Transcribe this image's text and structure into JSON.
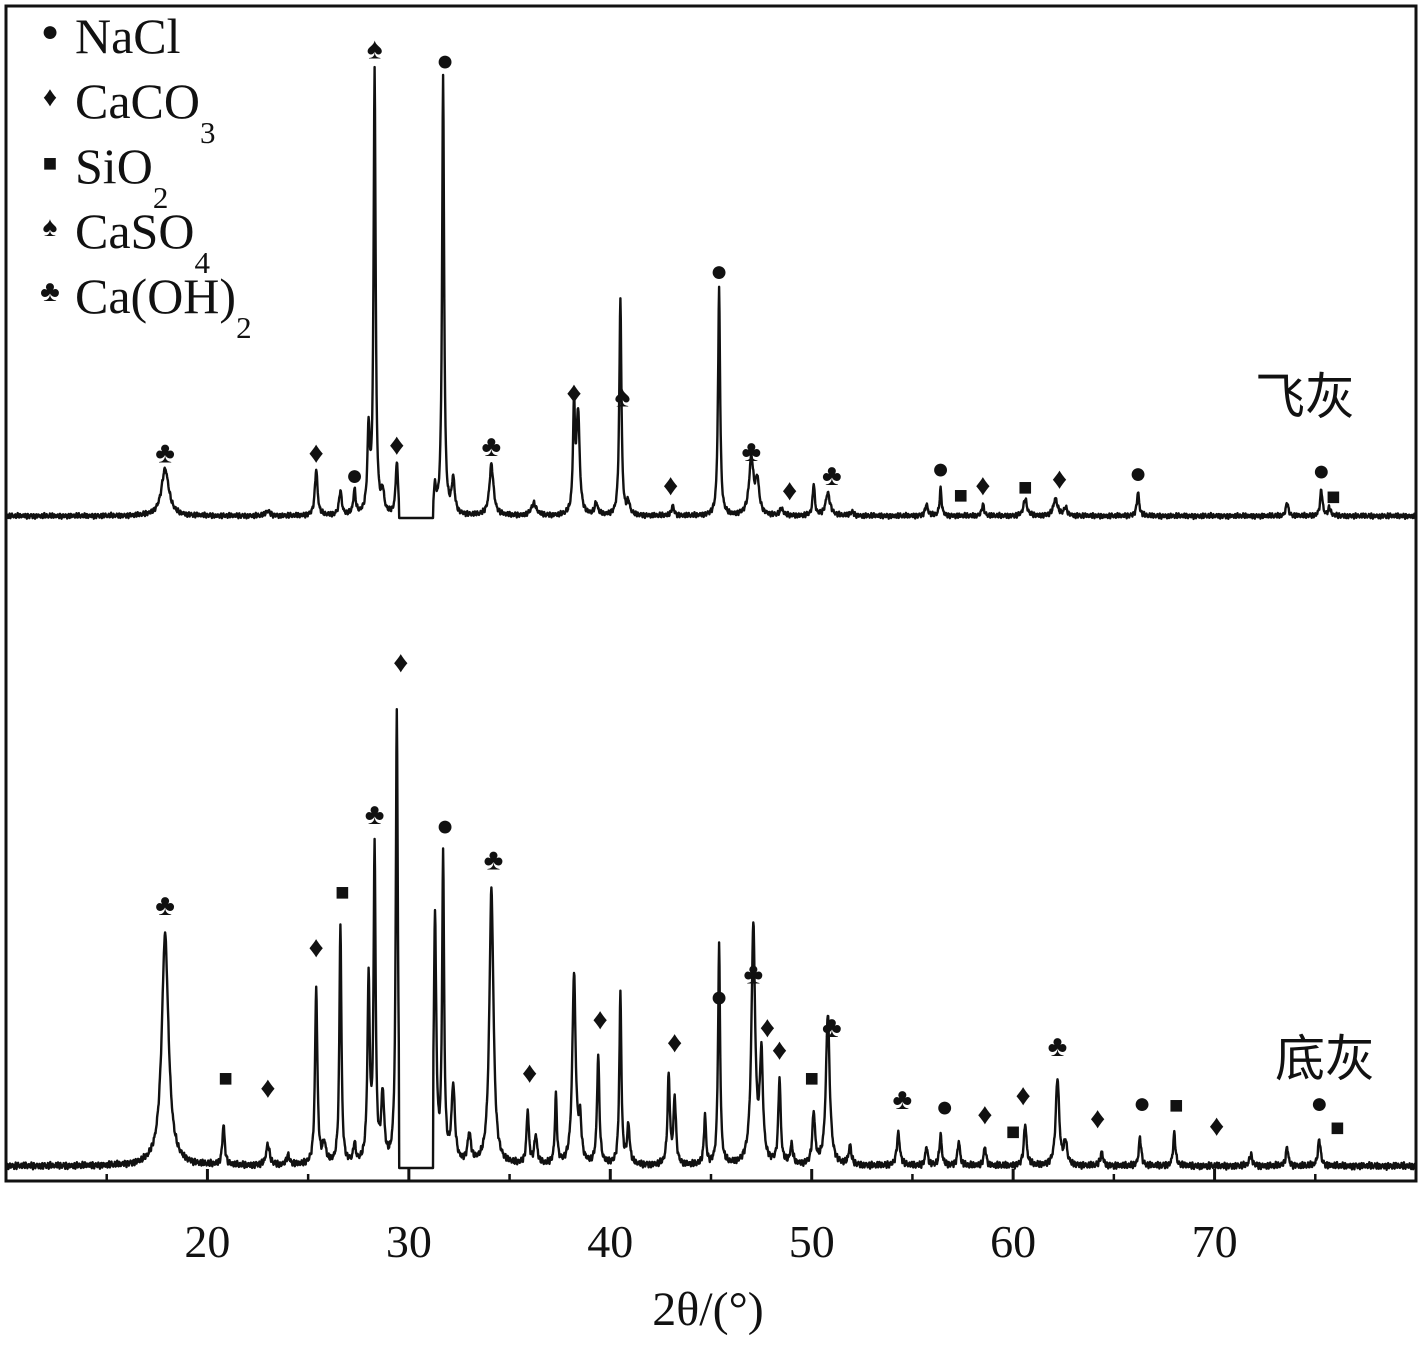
{
  "chart_data": {
    "type": "line",
    "xlabel": "2θ/(°)",
    "ylabel": "",
    "xlim": [
      10,
      80
    ],
    "x_ticks": [
      20,
      30,
      40,
      50,
      60,
      70
    ],
    "grid": false,
    "legend_placement": "top-left",
    "legend": [
      {
        "symbol": "circle",
        "base": "NaCl",
        "sub": "",
        "tail": ""
      },
      {
        "symbol": "diamond",
        "base": "CaCO",
        "sub": "3",
        "tail": ""
      },
      {
        "symbol": "square",
        "base": "SiO",
        "sub": "2",
        "tail": ""
      },
      {
        "symbol": "spade",
        "base": "CaSO",
        "sub": "4",
        "tail": ""
      },
      {
        "symbol": "club",
        "base": "Ca(OH)",
        "sub": "2",
        "tail": ""
      }
    ],
    "series": [
      {
        "name": "飞灰",
        "peaks": [
          [
            17.9,
            0.58,
            0.22
          ],
          [
            23.0,
            0.06,
            0.12
          ],
          [
            25.4,
            0.57,
            0.08
          ],
          [
            26.6,
            0.3,
            0.08
          ],
          [
            27.3,
            0.3,
            0.07
          ],
          [
            28.0,
            1.0,
            0.07
          ],
          [
            28.3,
            5.5,
            0.06
          ],
          [
            28.7,
            0.25,
            0.08
          ],
          [
            29.4,
            0.65,
            0.07
          ],
          [
            31.3,
            0.3,
            0.07
          ],
          [
            31.7,
            5.4,
            0.06
          ],
          [
            32.2,
            0.42,
            0.09
          ],
          [
            34.1,
            0.63,
            0.12
          ],
          [
            36.2,
            0.15,
            0.15
          ],
          [
            38.2,
            1.3,
            0.06
          ],
          [
            38.4,
            1.25,
            0.09
          ],
          [
            39.3,
            0.15,
            0.09
          ],
          [
            40.5,
            2.7,
            0.06
          ],
          [
            40.9,
            0.15,
            0.08
          ],
          [
            43.1,
            0.12,
            0.08
          ],
          [
            45.4,
            2.8,
            0.06
          ],
          [
            47.0,
            0.7,
            0.13
          ],
          [
            47.3,
            0.4,
            0.11
          ],
          [
            48.5,
            0.08,
            0.1
          ],
          [
            50.1,
            0.4,
            0.06
          ],
          [
            50.8,
            0.28,
            0.13
          ],
          [
            52.0,
            0.05,
            0.1
          ],
          [
            55.7,
            0.14,
            0.08
          ],
          [
            56.4,
            0.33,
            0.06
          ],
          [
            58.5,
            0.14,
            0.07
          ],
          [
            60.6,
            0.21,
            0.1
          ],
          [
            62.1,
            0.21,
            0.12
          ],
          [
            62.6,
            0.1,
            0.1
          ],
          [
            66.2,
            0.29,
            0.07
          ],
          [
            73.6,
            0.17,
            0.07
          ],
          [
            75.3,
            0.32,
            0.07
          ],
          [
            75.7,
            0.1,
            0.07
          ]
        ],
        "markers": [
          {
            "x": 17.9,
            "y": 0.66,
            "symbol": "club"
          },
          {
            "x": 25.4,
            "y": 0.66,
            "symbol": "diamond"
          },
          {
            "x": 27.3,
            "y": 0.38,
            "symbol": "circle"
          },
          {
            "x": 28.3,
            "y": 5.65,
            "symbol": "spade"
          },
          {
            "x": 29.4,
            "y": 0.76,
            "symbol": "diamond"
          },
          {
            "x": 31.8,
            "y": 5.5,
            "symbol": "circle"
          },
          {
            "x": 34.1,
            "y": 0.74,
            "symbol": "club"
          },
          {
            "x": 38.2,
            "y": 1.4,
            "symbol": "diamond"
          },
          {
            "x": 40.6,
            "y": 1.35,
            "symbol": "spade"
          },
          {
            "x": 45.4,
            "y": 2.9,
            "symbol": "circle"
          },
          {
            "x": 47.0,
            "y": 0.68,
            "symbol": "club"
          },
          {
            "x": 43.0,
            "y": 0.26,
            "symbol": "diamond"
          },
          {
            "x": 48.9,
            "y": 0.2,
            "symbol": "diamond"
          },
          {
            "x": 51.0,
            "y": 0.38,
            "symbol": "club"
          },
          {
            "x": 56.4,
            "y": 0.46,
            "symbol": "circle"
          },
          {
            "x": 57.4,
            "y": 0.16,
            "symbol": "square"
          },
          {
            "x": 58.5,
            "y": 0.26,
            "symbol": "diamond"
          },
          {
            "x": 60.6,
            "y": 0.26,
            "symbol": "square"
          },
          {
            "x": 62.3,
            "y": 0.34,
            "symbol": "diamond"
          },
          {
            "x": 66.2,
            "y": 0.41,
            "symbol": "circle"
          },
          {
            "x": 75.3,
            "y": 0.44,
            "symbol": "circle"
          },
          {
            "x": 75.9,
            "y": 0.14,
            "symbol": "square"
          }
        ]
      },
      {
        "name": "底灰",
        "peaks": [
          [
            17.9,
            1.22,
            0.2
          ],
          [
            20.8,
            0.21,
            0.07
          ],
          [
            23.0,
            0.11,
            0.1
          ],
          [
            24.0,
            0.05,
            0.1
          ],
          [
            25.4,
            0.93,
            0.07
          ],
          [
            25.8,
            0.1,
            0.1
          ],
          [
            26.6,
            1.27,
            0.06
          ],
          [
            27.3,
            0.1,
            0.07
          ],
          [
            28.0,
            0.95,
            0.07
          ],
          [
            28.3,
            1.65,
            0.06
          ],
          [
            28.7,
            0.35,
            0.09
          ],
          [
            29.4,
            2.4,
            0.06
          ],
          [
            31.3,
            1.3,
            0.07
          ],
          [
            31.7,
            1.6,
            0.06
          ],
          [
            32.2,
            0.4,
            0.1
          ],
          [
            33.0,
            0.15,
            0.1
          ],
          [
            34.1,
            1.45,
            0.12
          ],
          [
            35.9,
            0.28,
            0.07
          ],
          [
            36.3,
            0.15,
            0.08
          ],
          [
            37.3,
            0.36,
            0.06
          ],
          [
            38.2,
            1.0,
            0.1
          ],
          [
            38.5,
            0.2,
            0.08
          ],
          [
            39.4,
            0.57,
            0.07
          ],
          [
            40.5,
            0.9,
            0.06
          ],
          [
            40.9,
            0.2,
            0.08
          ],
          [
            42.9,
            0.47,
            0.07
          ],
          [
            43.2,
            0.35,
            0.07
          ],
          [
            44.7,
            0.26,
            0.06
          ],
          [
            45.4,
            1.15,
            0.06
          ],
          [
            47.1,
            1.25,
            0.11
          ],
          [
            47.5,
            0.55,
            0.09
          ],
          [
            48.4,
            0.45,
            0.07
          ],
          [
            49.0,
            0.1,
            0.08
          ],
          [
            50.1,
            0.27,
            0.08
          ],
          [
            50.8,
            0.8,
            0.11
          ],
          [
            51.9,
            0.1,
            0.08
          ],
          [
            54.3,
            0.17,
            0.09
          ],
          [
            55.7,
            0.1,
            0.07
          ],
          [
            56.4,
            0.16,
            0.07
          ],
          [
            57.3,
            0.13,
            0.07
          ],
          [
            58.6,
            0.1,
            0.07
          ],
          [
            60.6,
            0.22,
            0.08
          ],
          [
            62.2,
            0.46,
            0.1
          ],
          [
            62.6,
            0.12,
            0.09
          ],
          [
            64.4,
            0.07,
            0.08
          ],
          [
            66.3,
            0.15,
            0.07
          ],
          [
            68.0,
            0.17,
            0.07
          ],
          [
            71.8,
            0.06,
            0.08
          ],
          [
            73.6,
            0.1,
            0.07
          ],
          [
            75.2,
            0.14,
            0.08
          ]
        ],
        "markers": [
          {
            "x": 17.9,
            "y": 1.32,
            "symbol": "club"
          },
          {
            "x": 20.9,
            "y": 0.42,
            "symbol": "square"
          },
          {
            "x": 23.0,
            "y": 0.36,
            "symbol": "diamond"
          },
          {
            "x": 25.4,
            "y": 1.1,
            "symbol": "diamond"
          },
          {
            "x": 26.7,
            "y": 1.4,
            "symbol": "square"
          },
          {
            "x": 28.3,
            "y": 1.8,
            "symbol": "club"
          },
          {
            "x": 29.6,
            "y": 2.6,
            "symbol": "diamond"
          },
          {
            "x": 31.8,
            "y": 1.74,
            "symbol": "circle"
          },
          {
            "x": 34.2,
            "y": 1.56,
            "symbol": "club"
          },
          {
            "x": 36.0,
            "y": 0.44,
            "symbol": "diamond"
          },
          {
            "x": 39.5,
            "y": 0.72,
            "symbol": "diamond"
          },
          {
            "x": 43.2,
            "y": 0.6,
            "symbol": "diamond"
          },
          {
            "x": 45.4,
            "y": 0.84,
            "symbol": "circle"
          },
          {
            "x": 47.1,
            "y": 0.96,
            "symbol": "club"
          },
          {
            "x": 47.8,
            "y": 0.68,
            "symbol": "diamond"
          },
          {
            "x": 48.4,
            "y": 0.56,
            "symbol": "diamond"
          },
          {
            "x": 50.0,
            "y": 0.42,
            "symbol": "square"
          },
          {
            "x": 51.0,
            "y": 0.68,
            "symbol": "club"
          },
          {
            "x": 54.5,
            "y": 0.3,
            "symbol": "club"
          },
          {
            "x": 56.6,
            "y": 0.26,
            "symbol": "circle"
          },
          {
            "x": 58.6,
            "y": 0.22,
            "symbol": "diamond"
          },
          {
            "x": 60.0,
            "y": 0.14,
            "symbol": "square"
          },
          {
            "x": 60.5,
            "y": 0.32,
            "symbol": "diamond"
          },
          {
            "x": 62.2,
            "y": 0.58,
            "symbol": "club"
          },
          {
            "x": 64.2,
            "y": 0.2,
            "symbol": "diamond"
          },
          {
            "x": 66.4,
            "y": 0.28,
            "symbol": "circle"
          },
          {
            "x": 68.1,
            "y": 0.28,
            "symbol": "square"
          },
          {
            "x": 70.1,
            "y": 0.16,
            "symbol": "diamond"
          },
          {
            "x": 75.2,
            "y": 0.28,
            "symbol": "circle"
          },
          {
            "x": 76.1,
            "y": 0.16,
            "symbol": "square"
          }
        ]
      }
    ]
  }
}
